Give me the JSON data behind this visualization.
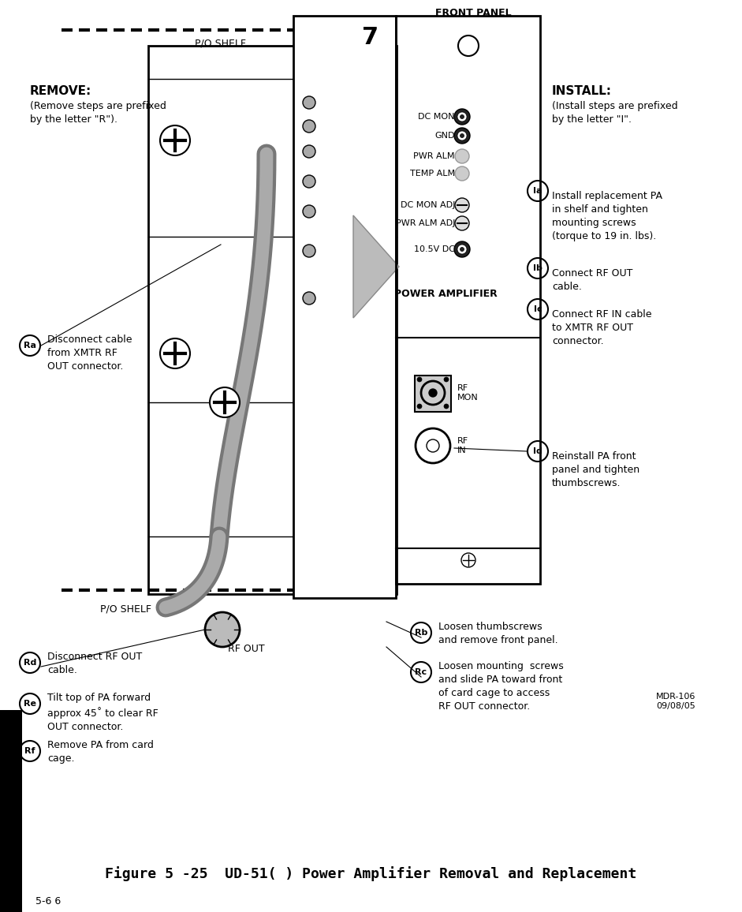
{
  "title": "Figure 5 -25  UD-51( ) Power Amplifier Removal and Replacement",
  "page_num": "5-6 6",
  "bg_color": "#ffffff",
  "remove_header": "REMOVE:",
  "install_header": "INSTALL:",
  "front_panel_label": "FRONT PANEL",
  "po_shelf_top": "P/O SHELF",
  "po_shelf_bottom": "P/O SHELF",
  "rf_out_label": "RF OUT",
  "mdr_label": "MDR-106\n09/08/05",
  "install_steps": [
    {
      "label": "Ia",
      "text": "Install replacement PA\nin shelf and tighten\nmounting screws\n(torque to 19 in. lbs)."
    },
    {
      "label": "Ib",
      "text": "Connect RF OUT\ncable."
    },
    {
      "label": "Ic",
      "text": "Connect RF IN cable\nto XMTR RF OUT\nconnector."
    },
    {
      "label": "Id",
      "text": "Reinstall PA front\npanel and tighten\nthumbscrews."
    }
  ],
  "remove_steps": [
    {
      "label": "Ra",
      "text": "Disconnect cable\nfrom XMTR RF\nOUT connector."
    },
    {
      "label": "Rb",
      "text": "Loosen thumbscrews\nand remove front panel."
    },
    {
      "label": "Rc",
      "text": "Loosen mounting  screws\nand slide PA toward front\nof card cage to access\nRF OUT connector."
    },
    {
      "label": "Rd",
      "text": "Disconnect RF OUT\ncable."
    },
    {
      "label": "Re",
      "text": "Tilt top of PA forward\napprox 45˚ to clear RF\nOUT connector."
    },
    {
      "label": "Rf",
      "text": "Remove PA from card\ncage."
    }
  ]
}
